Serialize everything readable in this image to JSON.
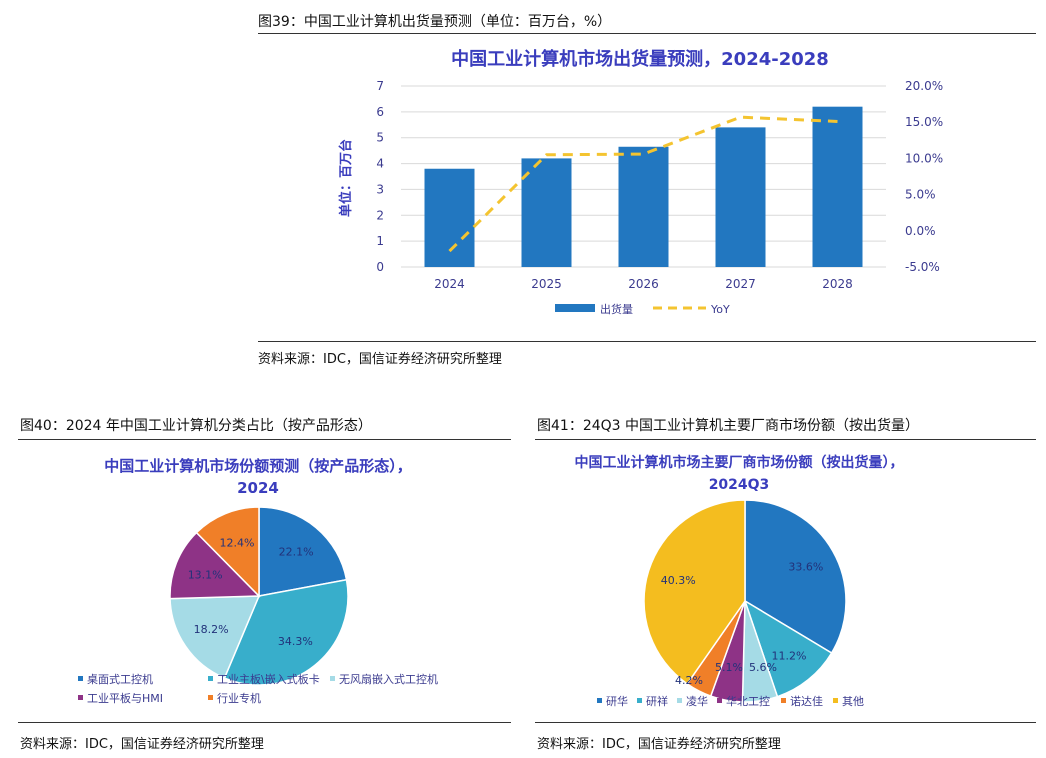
{
  "figures": {
    "fig39": {
      "caption": "图39：中国工业计算机出货量预测（单位：百万台，%）",
      "source": "资料来源：IDC，国信证券经济研究所整理"
    },
    "fig40": {
      "caption": "图40：2024 年中国工业计算机分类占比（按产品形态）",
      "source": "资料来源：IDC，国信证券经济研究所整理"
    },
    "fig41": {
      "caption": "图41：24Q3 中国工业计算机主要厂商市场份额（按出货量）",
      "source": "资料来源：IDC，国信证券经济研究所整理"
    }
  },
  "chart_data": [
    {
      "type": "bar",
      "title": "中国工业计算机市场出货量预测，2024-2028",
      "xlabel": "",
      "ylabel": "单位：百万台",
      "categories": [
        "2024",
        "2025",
        "2026",
        "2027",
        "2028"
      ],
      "ylim": [
        0,
        7
      ],
      "yticks": [
        "0",
        "1",
        "2",
        "3",
        "4",
        "5",
        "6",
        "7"
      ],
      "y2lim": [
        -5.0,
        20.0
      ],
      "y2ticks": [
        "-5.0%",
        "0.0%",
        "5.0%",
        "10.0%",
        "15.0%",
        "20.0%"
      ],
      "series": [
        {
          "name": "出货量",
          "kind": "bar",
          "axis": "left",
          "color": "#2277c0",
          "values": [
            3.8,
            4.2,
            4.65,
            5.4,
            6.2
          ]
        },
        {
          "name": "YoY",
          "kind": "line",
          "axis": "right",
          "color": "#f4c430",
          "style": "dashed",
          "values": [
            -2.8,
            10.5,
            10.6,
            15.7,
            15.1
          ]
        }
      ],
      "grid": true,
      "legend_position": "bottom"
    },
    {
      "type": "pie",
      "title_lines": [
        "中国工业计算机市场份额预测（按产品形态），",
        "2024"
      ],
      "categories": [
        "桌面式工控机",
        "工业主板\\嵌入式板卡",
        "无风扇嵌入式工控机",
        "工业平板与HMI",
        "行业专机"
      ],
      "values": [
        22.1,
        34.3,
        18.2,
        13.1,
        12.4
      ],
      "labels": [
        "22.1%",
        "34.3%",
        "18.2%",
        "13.1%",
        "12.4%"
      ],
      "colors": [
        "#2277c0",
        "#38aecb",
        "#a5dbe6",
        "#8e3386",
        "#f07f28"
      ],
      "legend_position": "bottom"
    },
    {
      "type": "pie",
      "title_lines": [
        "中国工业计算机市场主要厂商市场份额（按出货量），",
        "2024Q3"
      ],
      "categories": [
        "研华",
        "研祥",
        "凌华",
        "华北工控",
        "诺达佳",
        "其他"
      ],
      "values": [
        33.6,
        11.2,
        5.6,
        5.1,
        4.2,
        40.3
      ],
      "labels": [
        "33.6%",
        "11.2%",
        "5.6%",
        "5.1%",
        "4.2%",
        "40.3%"
      ],
      "colors": [
        "#2277c0",
        "#38aecb",
        "#a5dbe6",
        "#8e3386",
        "#f07f28",
        "#f4bd1f"
      ],
      "legend_position": "bottom"
    }
  ]
}
